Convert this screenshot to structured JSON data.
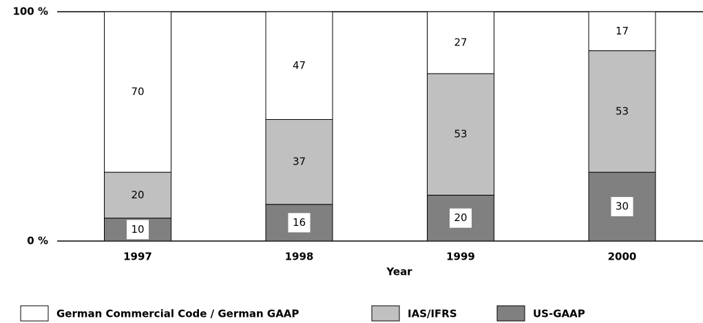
{
  "chart_data": {
    "type": "stacked_bar",
    "x_label": "Year",
    "categories": [
      "1997",
      "1998",
      "1999",
      "2000"
    ],
    "series": [
      {
        "name": "German Commercial Code / German GAAP",
        "color": "#ffffff",
        "values": [
          70,
          47,
          27,
          17
        ]
      },
      {
        "name": "IAS/IFRS",
        "color": "#c0c0c0",
        "values": [
          20,
          37,
          53,
          53
        ]
      },
      {
        "name": "US-GAAP",
        "color": "#808080",
        "values": [
          10,
          16,
          20,
          30
        ]
      }
    ],
    "ylim": [
      0,
      100
    ],
    "yticks": [
      {
        "value": 0,
        "label": "0 %"
      },
      {
        "value": 100,
        "label": "100 %"
      }
    ]
  }
}
